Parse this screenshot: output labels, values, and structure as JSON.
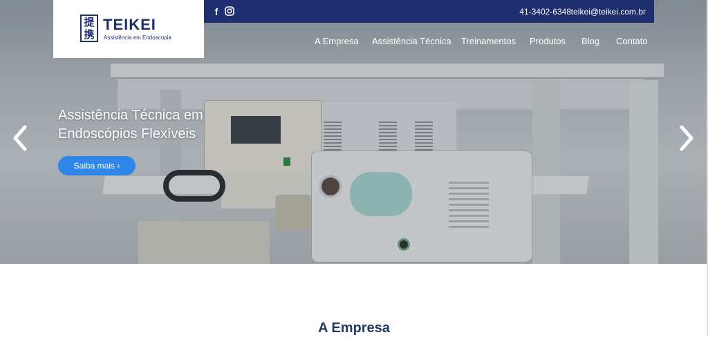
{
  "brand": {
    "name": "TEIKEI",
    "tagline": "Assistência em Endoscopia",
    "mark_chars": [
      "提",
      "携"
    ],
    "primary_color": "#1f2e6e"
  },
  "topbar": {
    "phone": "41-3402-6348",
    "email": "teikei@teikei.com.br",
    "social": [
      {
        "icon": "facebook-icon",
        "glyph": "f"
      },
      {
        "icon": "instagram-icon"
      }
    ]
  },
  "nav": {
    "items": [
      {
        "label": "A Empresa"
      },
      {
        "label": "Assistência Técnica"
      },
      {
        "label": "Treinamentos"
      },
      {
        "label": "Produtos"
      },
      {
        "label": "Blog"
      },
      {
        "label": "Contato"
      }
    ]
  },
  "hero": {
    "title": "Assistência Técnica em Endoscópios Flexíveis",
    "cta_label": "Saiba mais ›",
    "cta_color": "#2e86e6",
    "prev_icon": "chevron-left-icon",
    "next_icon": "chevron-right-icon"
  },
  "section": {
    "title": "A Empresa"
  }
}
